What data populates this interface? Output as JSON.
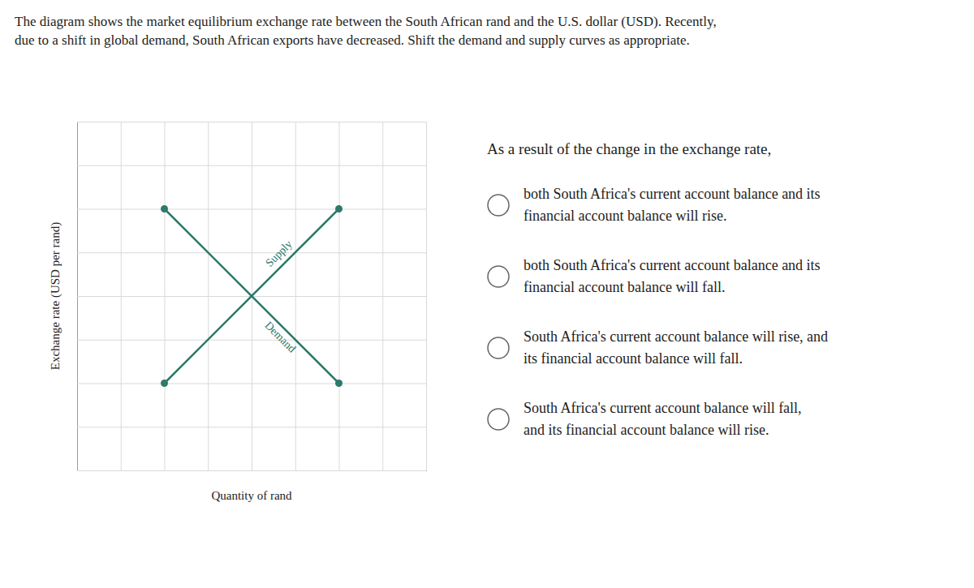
{
  "chart_data": {
    "type": "line",
    "title": "The diagram shows the market equilibrium exchange rate between the South African rand and the U.S. dollar (USD). Recently,\ndue to a shift in global demand, South African exports have decreased. Shift the demand and supply curves as appropriate.",
    "x_label": "Quantity of rand",
    "y_label": "Exchange rate (USD per rand)",
    "series": [
      {
        "name": "Supply",
        "color": "#2d7a6b",
        "marker": "circle",
        "x": [
          2,
          6
        ],
        "values": [
          2,
          6
        ]
      },
      {
        "name": "Demand",
        "color": "#2d7a6b",
        "marker": "circle",
        "x": [
          2,
          6
        ],
        "values": [
          6,
          2
        ]
      }
    ],
    "xlim": [
      0,
      8
    ],
    "ylim": [
      0,
      8
    ],
    "xticks": [
      0,
      1,
      2,
      3,
      4,
      5,
      6,
      7,
      8
    ],
    "yticks": [
      0,
      1,
      2,
      3,
      4,
      5,
      6,
      7,
      8
    ],
    "grid": true,
    "tick_labels": false,
    "question": "As a result of the change in the exchange rate,",
    "options": [
      "both South Africa's current account balance and its\nfinancial account balance will rise.",
      "both South Africa's current account balance and its\nfinancial account balance will fall.",
      "South Africa's current account balance will rise, and\nits financial account balance will fall.",
      "South Africa's current account balance will fall,\nand its financial account balance will rise."
    ]
  }
}
